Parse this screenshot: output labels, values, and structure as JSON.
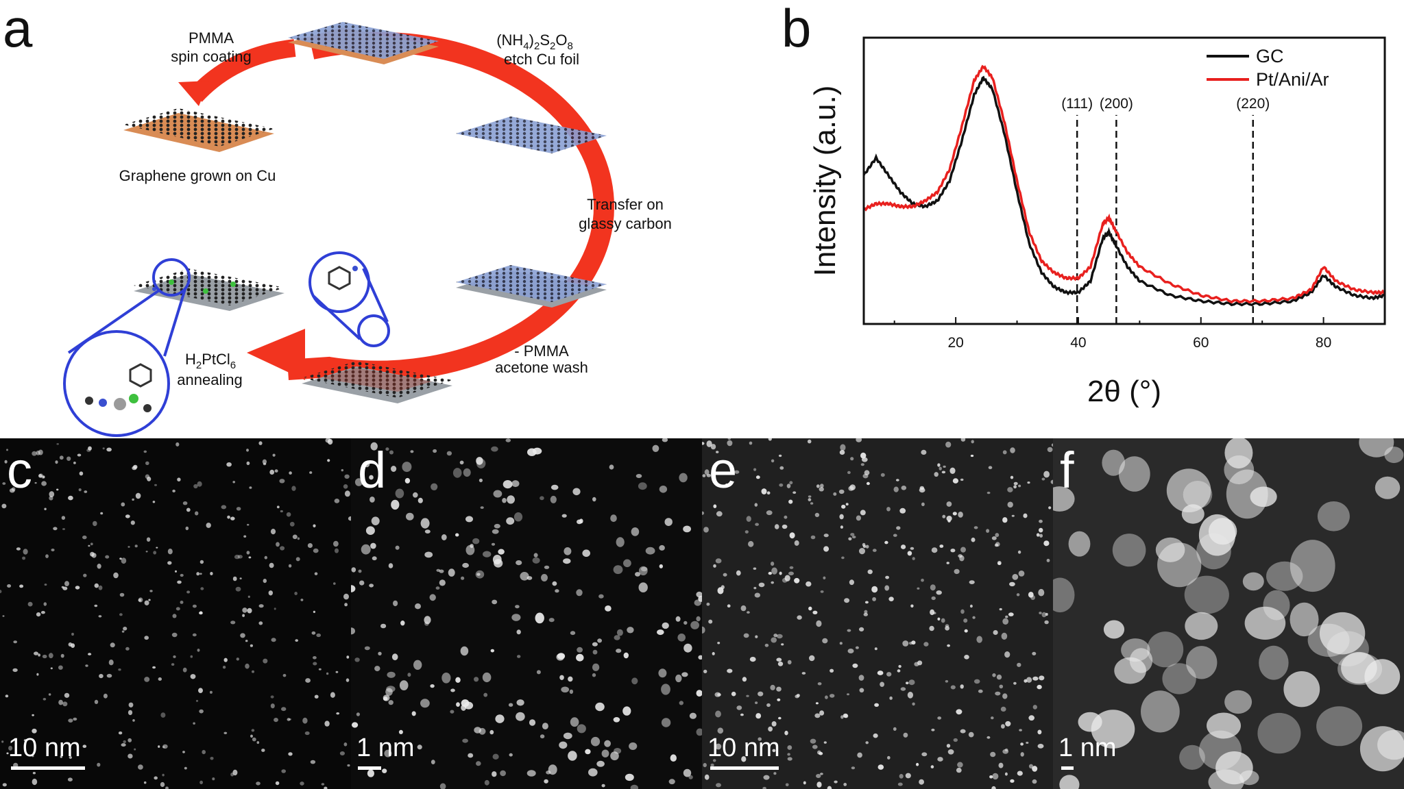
{
  "panel_a": {
    "letter": "a",
    "steps": {
      "pmma_1": "PMMA",
      "pmma_2": "spin coating",
      "etch_1": "(NH",
      "etch_1_sub1": "4",
      "etch_1_mid": ")",
      "etch_1_sub2": "2",
      "etch_1_s": "S",
      "etch_1_sub3": "2",
      "etch_1_o": "O",
      "etch_1_sub4": "8",
      "etch_2": "etch Cu foil",
      "graphene": "Graphene grown on Cu",
      "transfer_1": "Transfer on",
      "transfer_2": "glassy carbon",
      "wash_1": "- PMMA",
      "wash_2": "acetone wash",
      "anneal_h": "H",
      "anneal_sub2": "2",
      "anneal_ptcl": "PtCl",
      "anneal_sub6": "6",
      "anneal_2": "annealing"
    },
    "colors": {
      "arrow": "#f2341f",
      "circle": "#2f3fd6",
      "cu": "#d98c55",
      "pmma": "#7f93c9"
    }
  },
  "panel_b": {
    "letter": "b"
  },
  "chart_data": {
    "type": "line",
    "title": "",
    "xlabel": "2θ (°)",
    "ylabel": "Intensity (a.u.)",
    "xlim": [
      5,
      90
    ],
    "ylim": [
      0,
      1
    ],
    "xticks": [
      20,
      40,
      60,
      80
    ],
    "x_tick_labels": [
      "20",
      "40",
      "60",
      "80"
    ],
    "grid": false,
    "legend": "top-right",
    "series": [
      {
        "name": "GC",
        "color": "#111111",
        "x": [
          5,
          7,
          9,
          11,
          13,
          15,
          17,
          19,
          21,
          23,
          24.5,
          26,
          28,
          30,
          32,
          34,
          36,
          38,
          40,
          42,
          44,
          45,
          46,
          48,
          50,
          55,
          60,
          65,
          70,
          75,
          78,
          80,
          82,
          85,
          88,
          90
        ],
        "y": [
          0.52,
          0.58,
          0.52,
          0.46,
          0.42,
          0.41,
          0.43,
          0.5,
          0.64,
          0.8,
          0.86,
          0.82,
          0.66,
          0.46,
          0.28,
          0.18,
          0.13,
          0.11,
          0.11,
          0.15,
          0.3,
          0.32,
          0.28,
          0.2,
          0.15,
          0.1,
          0.08,
          0.07,
          0.07,
          0.08,
          0.11,
          0.17,
          0.13,
          0.1,
          0.09,
          0.1
        ]
      },
      {
        "name": "Pt/Ani/Ar",
        "color": "#e8201e",
        "x": [
          5,
          7,
          9,
          11,
          13,
          15,
          17,
          19,
          21,
          23,
          24.5,
          26,
          28,
          30,
          32,
          34,
          36,
          38,
          40,
          42,
          44,
          45,
          46,
          48,
          50,
          55,
          60,
          65,
          70,
          75,
          78,
          80,
          82,
          85,
          88,
          90
        ],
        "y": [
          0.4,
          0.42,
          0.42,
          0.41,
          0.41,
          0.43,
          0.46,
          0.54,
          0.69,
          0.85,
          0.9,
          0.86,
          0.7,
          0.5,
          0.32,
          0.22,
          0.18,
          0.16,
          0.16,
          0.2,
          0.35,
          0.37,
          0.33,
          0.25,
          0.2,
          0.14,
          0.1,
          0.08,
          0.08,
          0.09,
          0.12,
          0.2,
          0.15,
          0.12,
          0.11,
          0.11
        ]
      }
    ],
    "annotations": [
      {
        "label": "(111)",
        "x": 39.8
      },
      {
        "label": "(200)",
        "x": 46.2
      },
      {
        "label": "(220)",
        "x": 68.5
      }
    ]
  },
  "micrographs": [
    {
      "letter": "c",
      "scale": "10 nm",
      "tone": "dark"
    },
    {
      "letter": "d",
      "scale": "1 nm",
      "tone": "dark"
    },
    {
      "letter": "e",
      "scale": "10 nm",
      "tone": "mid"
    },
    {
      "letter": "f",
      "scale": "1 nm",
      "tone": "bright"
    }
  ]
}
